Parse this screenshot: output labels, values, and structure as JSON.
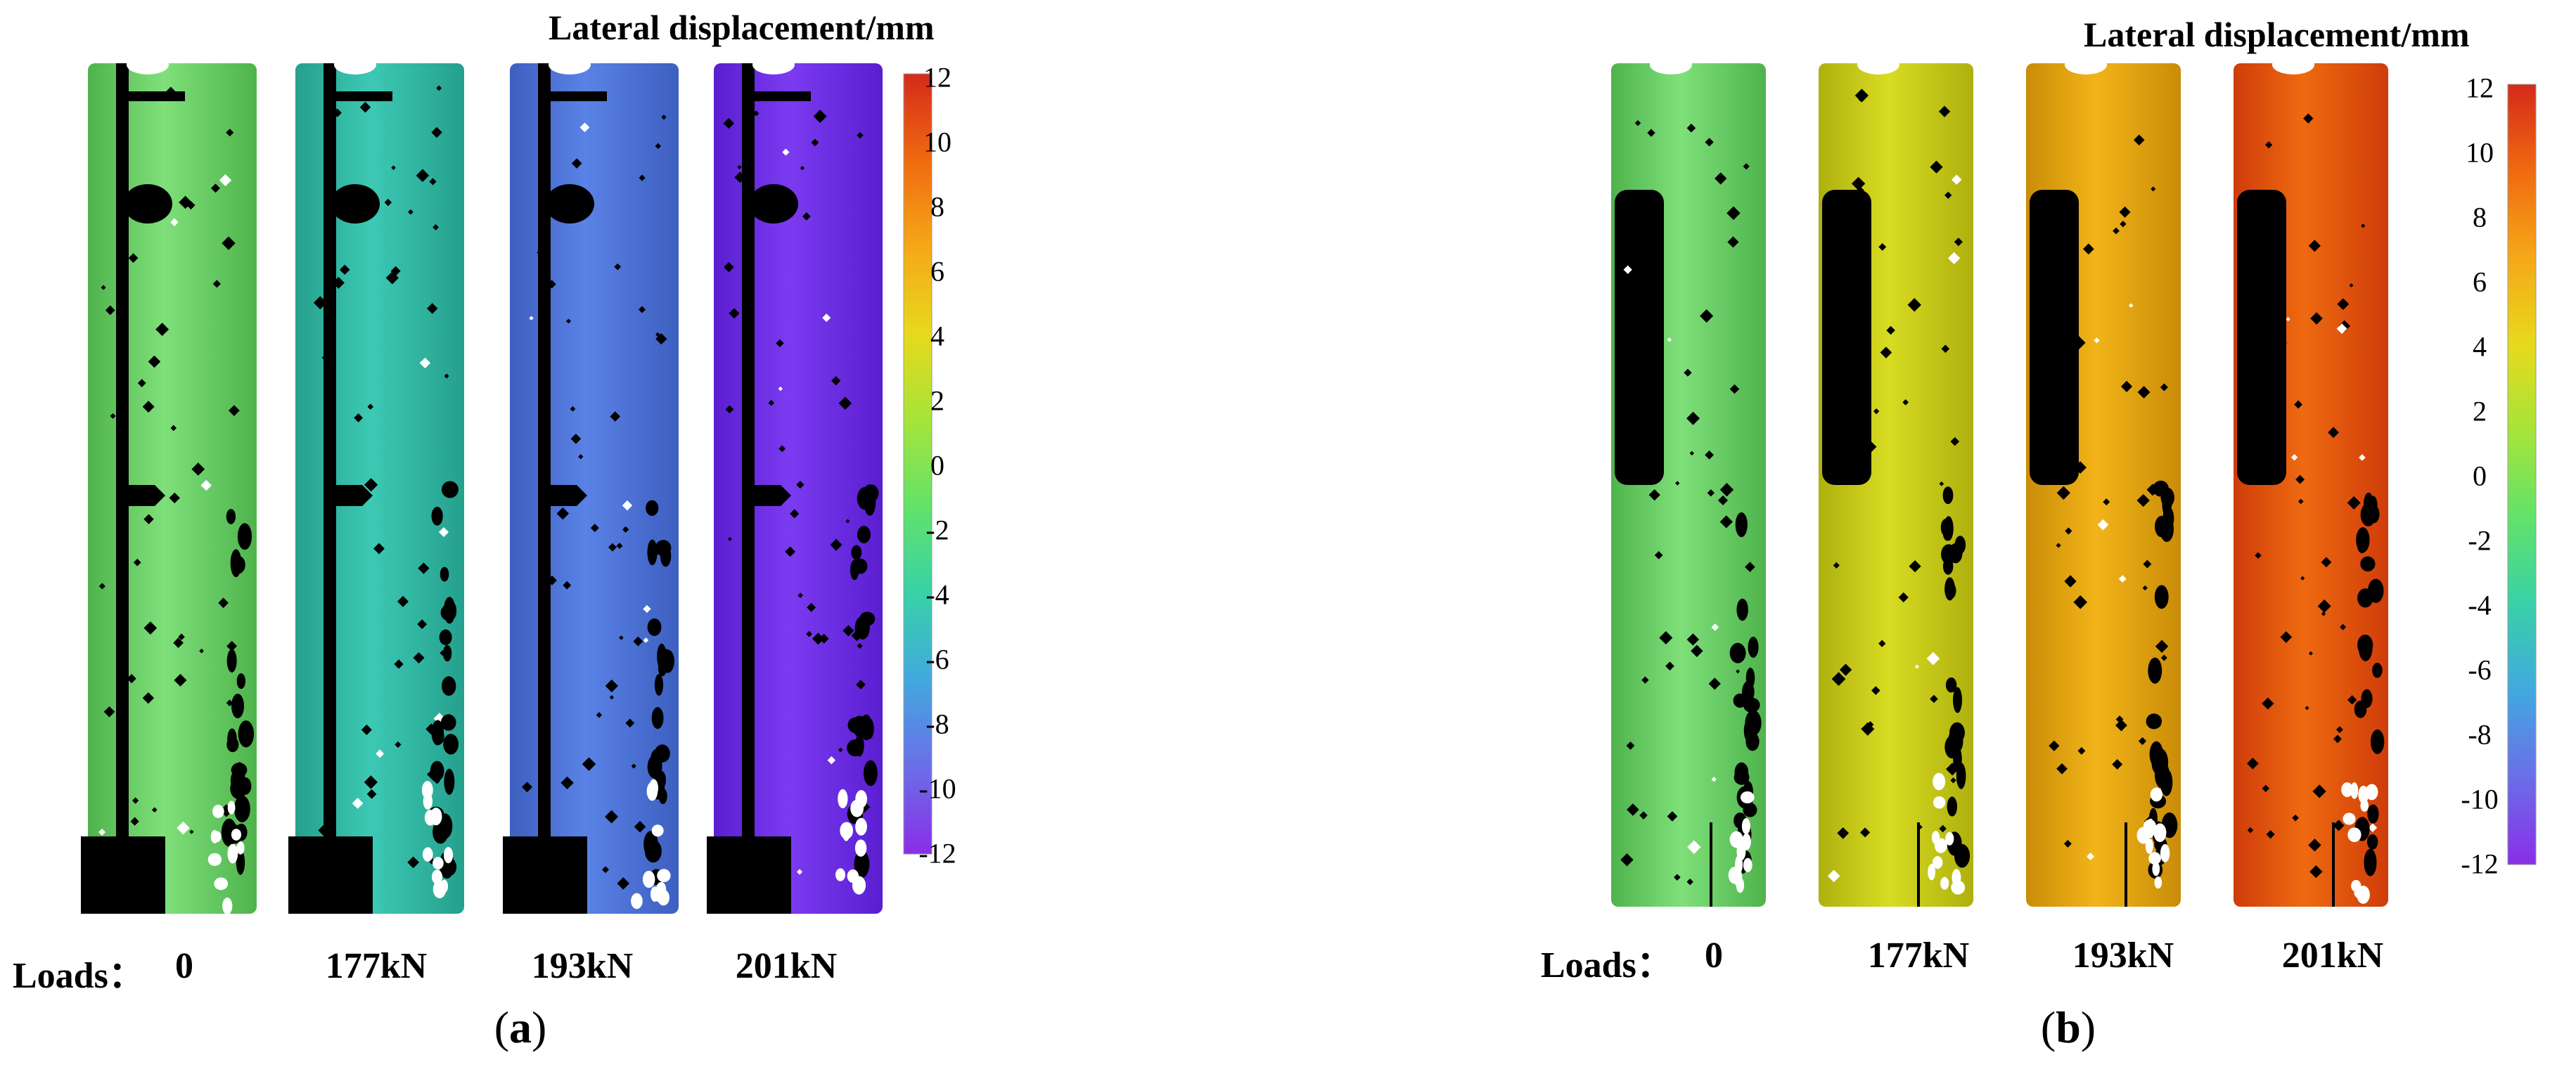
{
  "figure": {
    "panels": [
      {
        "id": "a",
        "title": "Lateral displacement/mm",
        "loads_label": "Loads：",
        "loads": [
          "0",
          "177kN",
          "193kN",
          "201kN"
        ],
        "caption_open": "(",
        "caption_letter": "a",
        "caption_close": ")",
        "colorbar_ticks": [
          "12",
          "10",
          "8",
          "6",
          "4",
          "2",
          "0",
          "-2",
          "-4",
          "-6",
          "-8",
          "-10",
          "-12"
        ],
        "column_base_colors": [
          "#7fe07a",
          "#3cc9b4",
          "#5a82e6",
          "#7b3bf0"
        ],
        "column_edge_colors": [
          "#4fb34c",
          "#25a08d",
          "#3d5fc0",
          "#5a1ed0"
        ]
      },
      {
        "id": "b",
        "title": "Lateral displacement/mm",
        "loads_label": "Loads：",
        "loads": [
          "0",
          "177kN",
          "193kN",
          "201kN"
        ],
        "caption_open": "(",
        "caption_letter": "b",
        "caption_close": ")",
        "colorbar_ticks": [
          "12",
          "10",
          "8",
          "6",
          "4",
          "2",
          "0",
          "-2",
          "-4",
          "-6",
          "-8",
          "-10",
          "-12"
        ],
        "column_base_colors": [
          "#7fe07a",
          "#d8dc22",
          "#f2b418",
          "#ee6a10"
        ],
        "column_edge_colors": [
          "#4fb34c",
          "#aeb00e",
          "#c98c08",
          "#cf3c0a"
        ]
      }
    ],
    "colorbar_colors": [
      "#d42a1a",
      "#f06a10",
      "#f5a818",
      "#e7d91c",
      "#a6e43a",
      "#62e26a",
      "#38d1a8",
      "#42a8e0",
      "#6b6ee8",
      "#8a2ee8"
    ]
  }
}
